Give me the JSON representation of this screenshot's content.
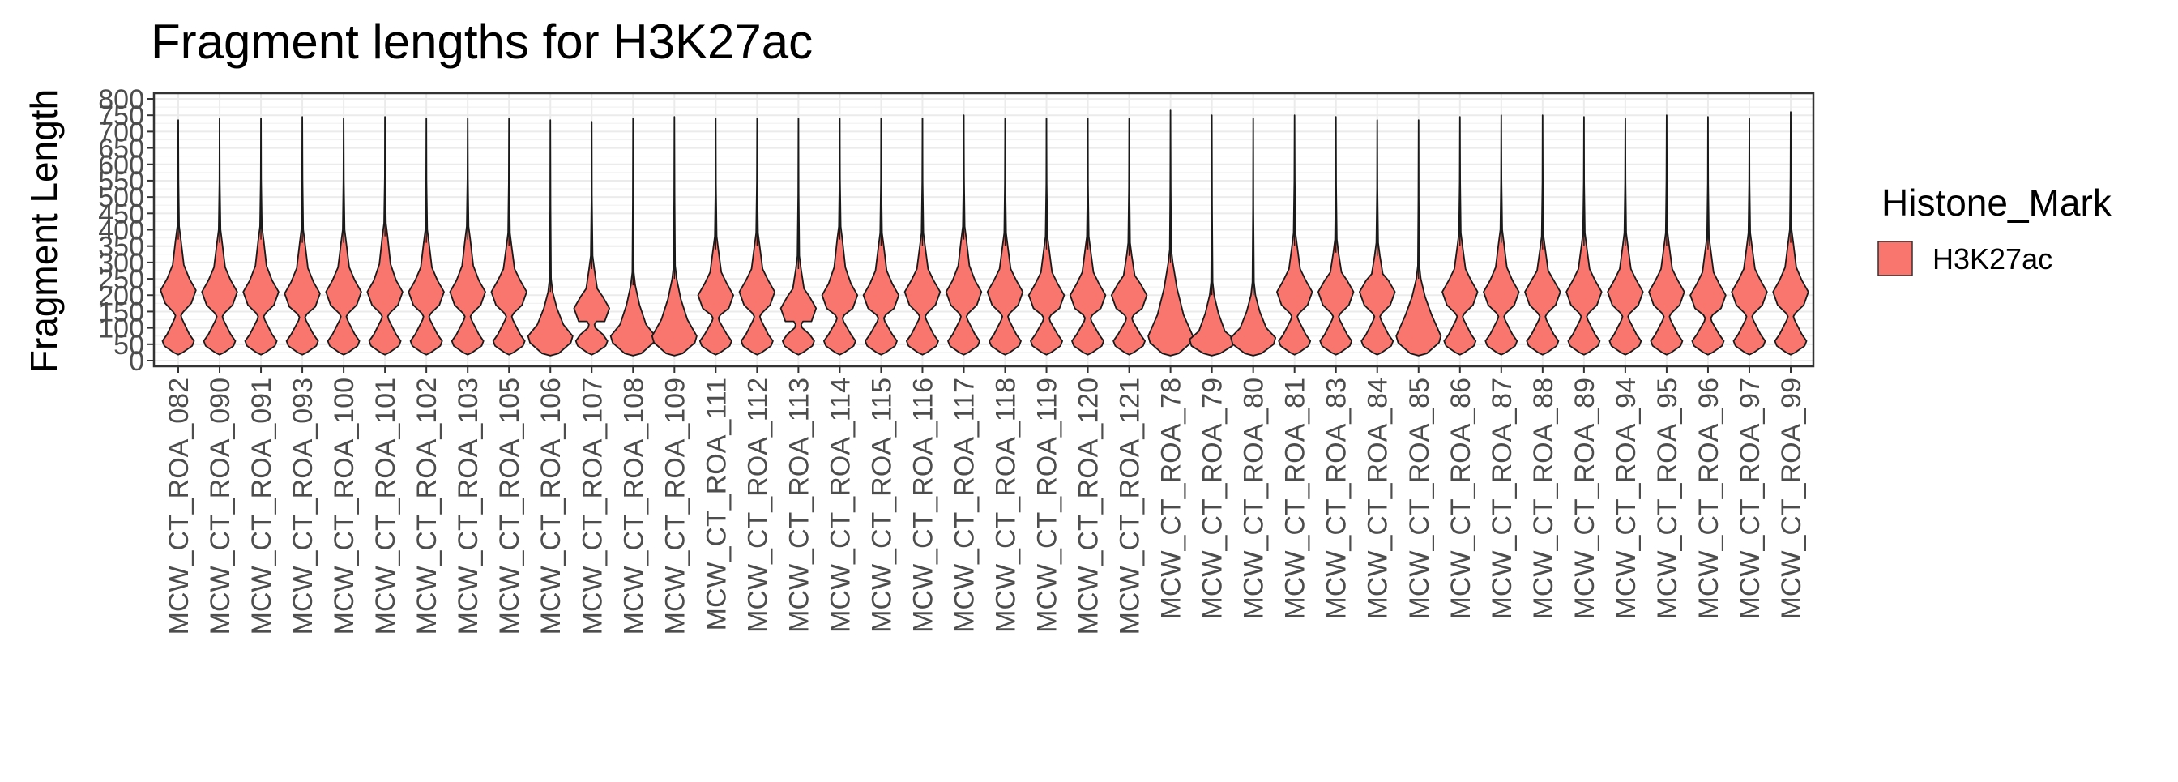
{
  "chart_data": {
    "type": "violin",
    "title": "Fragment lengths for H3K27ac",
    "xlabel": "",
    "ylabel": "Fragment Length",
    "ylim": [
      0,
      800
    ],
    "yticks": [
      0,
      50,
      100,
      150,
      200,
      250,
      300,
      350,
      400,
      450,
      500,
      550,
      600,
      650,
      700,
      750,
      800
    ],
    "grid": true,
    "legend": {
      "title": "Histone_Mark",
      "placement": "right",
      "entries": [
        {
          "label": "H3K27ac",
          "color": "#F8766D"
        }
      ]
    },
    "categories": [
      "MCW_CT_ROA_082",
      "MCW_CT_ROA_090",
      "MCW_CT_ROA_091",
      "MCW_CT_ROA_093",
      "MCW_CT_ROA_100",
      "MCW_CT_ROA_101",
      "MCW_CT_ROA_102",
      "MCW_CT_ROA_103",
      "MCW_CT_ROA_105",
      "MCW_CT_ROA_106",
      "MCW_CT_ROA_107",
      "MCW_CT_ROA_108",
      "MCW_CT_ROA_109",
      "MCW_CT_ROA_111",
      "MCW_CT_ROA_112",
      "MCW_CT_ROA_113",
      "MCW_CT_ROA_114",
      "MCW_CT_ROA_115",
      "MCW_CT_ROA_116",
      "MCW_CT_ROA_117",
      "MCW_CT_ROA_118",
      "MCW_CT_ROA_119",
      "MCW_CT_ROA_120",
      "MCW_CT_ROA_121",
      "MCW_CT_ROA_78",
      "MCW_CT_ROA_79",
      "MCW_CT_ROA_80",
      "MCW_CT_ROA_81",
      "MCW_CT_ROA_83",
      "MCW_CT_ROA_84",
      "MCW_CT_ROA_85",
      "MCW_CT_ROA_86",
      "MCW_CT_ROA_87",
      "MCW_CT_ROA_88",
      "MCW_CT_ROA_89",
      "MCW_CT_ROA_94",
      "MCW_CT_ROA_95",
      "MCW_CT_ROA_96",
      "MCW_CT_ROA_97",
      "MCW_CT_ROA_99"
    ],
    "series": [
      {
        "color": "#F8766D",
        "max_values": [
          735,
          740,
          740,
          745,
          740,
          745,
          740,
          740,
          740,
          735,
          730,
          740,
          745,
          740,
          740,
          740,
          740,
          740,
          740,
          750,
          740,
          740,
          740,
          740,
          765,
          750,
          740,
          750,
          745,
          735,
          735,
          745,
          750,
          750,
          745,
          740,
          750,
          745,
          740,
          760
        ],
        "peak_low": [
          60,
          60,
          60,
          60,
          60,
          60,
          60,
          60,
          60,
          60,
          60,
          60,
          60,
          60,
          60,
          60,
          60,
          60,
          60,
          60,
          60,
          60,
          60,
          60,
          60,
          50,
          55,
          60,
          60,
          60,
          60,
          60,
          60,
          60,
          60,
          60,
          60,
          60,
          60,
          60
        ],
        "peak_high": [
          215,
          210,
          210,
          205,
          210,
          210,
          210,
          210,
          210,
          110,
          160,
          110,
          125,
          200,
          210,
          160,
          200,
          200,
          210,
          210,
          210,
          200,
          200,
          200,
          140,
          90,
          100,
          210,
          210,
          210,
          140,
          210,
          210,
          210,
          210,
          210,
          210,
          200,
          210,
          210
        ],
        "body_top": [
          370,
          360,
          370,
          360,
          360,
          380,
          360,
          370,
          350,
          210,
          280,
          230,
          250,
          340,
          350,
          280,
          370,
          350,
          350,
          370,
          350,
          340,
          340,
          320,
          300,
          200,
          200,
          350,
          330,
          320,
          250,
          350,
          360,
          340,
          350,
          350,
          350,
          340,
          350,
          360
        ]
      }
    ]
  }
}
